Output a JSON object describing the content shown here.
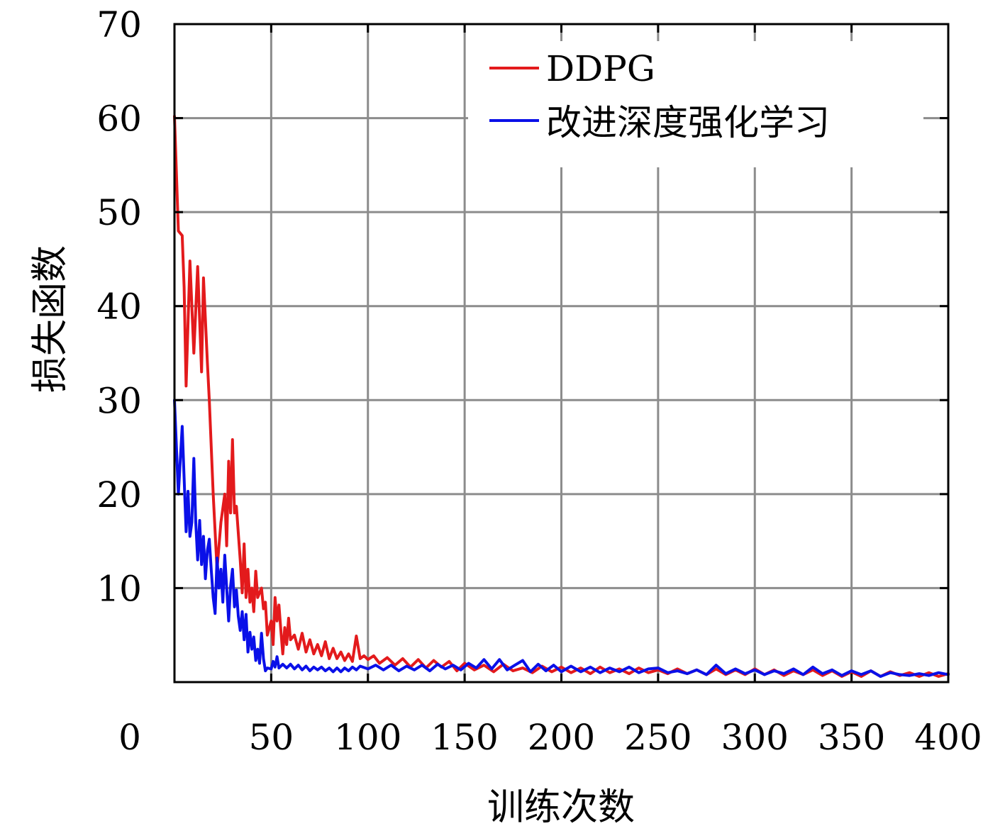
{
  "chart_data": {
    "type": "line",
    "xlabel": "训练次数",
    "ylabel": "损失函数",
    "xlim": [
      0,
      400
    ],
    "ylim": [
      0,
      70
    ],
    "x_ticks": [
      0,
      50,
      100,
      150,
      200,
      250,
      300,
      350,
      400
    ],
    "y_ticks": [
      10,
      20,
      30,
      40,
      50,
      60,
      70
    ],
    "grid": true,
    "legend_position": "top-right",
    "series": [
      {
        "name": "DDPG",
        "color": "#e31a1c",
        "points": [
          [
            0,
            60.2
          ],
          [
            2,
            48
          ],
          [
            4,
            47.5
          ],
          [
            5,
            42
          ],
          [
            6,
            31.5
          ],
          [
            8,
            44.8
          ],
          [
            10,
            35
          ],
          [
            12,
            44.2
          ],
          [
            14,
            33
          ],
          [
            15,
            43
          ],
          [
            17,
            34
          ],
          [
            18,
            30
          ],
          [
            20,
            20
          ],
          [
            22,
            12
          ],
          [
            24,
            17
          ],
          [
            26,
            20
          ],
          [
            27,
            14.5
          ],
          [
            28,
            23.5
          ],
          [
            29,
            18
          ],
          [
            30,
            25.8
          ],
          [
            31,
            18
          ],
          [
            32,
            18.7
          ],
          [
            34,
            13
          ],
          [
            35,
            9.5
          ],
          [
            36,
            14.7
          ],
          [
            37,
            9
          ],
          [
            38,
            12
          ],
          [
            39,
            8.5
          ],
          [
            40,
            10
          ],
          [
            41,
            7.5
          ],
          [
            42,
            11.8
          ],
          [
            43,
            9
          ],
          [
            45,
            10
          ],
          [
            46,
            7.8
          ],
          [
            47,
            8.5
          ],
          [
            48,
            5
          ],
          [
            50,
            6.5
          ],
          [
            51,
            4
          ],
          [
            52,
            9
          ],
          [
            53,
            6.5
          ],
          [
            54,
            8.2
          ],
          [
            55,
            5.5
          ],
          [
            56,
            3
          ],
          [
            57,
            5.8
          ],
          [
            58,
            4
          ],
          [
            59,
            6.8
          ],
          [
            60,
            4.5
          ],
          [
            62,
            5
          ],
          [
            64,
            3.5
          ],
          [
            66,
            5.2
          ],
          [
            68,
            3.2
          ],
          [
            70,
            4.5
          ],
          [
            72,
            3
          ],
          [
            74,
            4
          ],
          [
            76,
            2.8
          ],
          [
            78,
            4.3
          ],
          [
            80,
            2.5
          ],
          [
            82,
            3.6
          ],
          [
            84,
            2.5
          ],
          [
            86,
            3.2
          ],
          [
            88,
            2.3
          ],
          [
            90,
            3
          ],
          [
            92,
            2.2
          ],
          [
            94,
            4.9
          ],
          [
            96,
            2.5
          ],
          [
            98,
            2.8
          ],
          [
            100,
            2.4
          ],
          [
            103,
            2.8
          ],
          [
            106,
            2
          ],
          [
            110,
            2.6
          ],
          [
            114,
            1.8
          ],
          [
            118,
            2.5
          ],
          [
            122,
            1.6
          ],
          [
            126,
            2.4
          ],
          [
            130,
            1.5
          ],
          [
            134,
            2.3
          ],
          [
            138,
            1.6
          ],
          [
            142,
            2.2
          ],
          [
            146,
            1.2
          ],
          [
            150,
            2
          ],
          [
            155,
            1.3
          ],
          [
            160,
            1.8
          ],
          [
            165,
            1.1
          ],
          [
            170,
            1.9
          ],
          [
            175,
            1.2
          ],
          [
            180,
            1.5
          ],
          [
            185,
            1
          ],
          [
            190,
            1.7
          ],
          [
            195,
            1.1
          ],
          [
            200,
            1.6
          ],
          [
            205,
            1
          ],
          [
            210,
            1.5
          ],
          [
            215,
            0.9
          ],
          [
            220,
            1.6
          ],
          [
            225,
            1
          ],
          [
            230,
            1.4
          ],
          [
            235,
            0.9
          ],
          [
            240,
            1.5
          ],
          [
            245,
            1
          ],
          [
            250,
            1.3
          ],
          [
            255,
            0.9
          ],
          [
            260,
            1.4
          ],
          [
            265,
            0.9
          ],
          [
            270,
            1.3
          ],
          [
            275,
            0.8
          ],
          [
            280,
            1.4
          ],
          [
            285,
            0.8
          ],
          [
            290,
            1.3
          ],
          [
            295,
            0.8
          ],
          [
            300,
            1.4
          ],
          [
            305,
            0.8
          ],
          [
            310,
            1.3
          ],
          [
            315,
            0.7
          ],
          [
            320,
            1.2
          ],
          [
            325,
            0.8
          ],
          [
            330,
            1.3
          ],
          [
            335,
            0.7
          ],
          [
            340,
            1.2
          ],
          [
            345,
            0.6
          ],
          [
            350,
            1.1
          ],
          [
            355,
            0.6
          ],
          [
            360,
            1.2
          ],
          [
            365,
            0.6
          ],
          [
            370,
            1.1
          ],
          [
            375,
            0.7
          ],
          [
            380,
            1
          ],
          [
            385,
            0.6
          ],
          [
            390,
            1
          ],
          [
            395,
            0.6
          ],
          [
            400,
            0.9
          ]
        ]
      },
      {
        "name": "改进深度强化学习",
        "color": "#0a10e8",
        "points": [
          [
            0,
            30
          ],
          [
            2,
            20
          ],
          [
            4,
            27.2
          ],
          [
            6,
            16
          ],
          [
            7,
            20.3
          ],
          [
            8,
            15.5
          ],
          [
            9,
            17
          ],
          [
            10,
            23.8
          ],
          [
            11,
            17
          ],
          [
            12,
            13
          ],
          [
            13,
            17.2
          ],
          [
            14,
            12.5
          ],
          [
            15,
            15.5
          ],
          [
            16,
            11
          ],
          [
            17,
            14
          ],
          [
            18,
            15.2
          ],
          [
            19,
            12
          ],
          [
            20,
            9
          ],
          [
            21,
            7.3
          ],
          [
            22,
            13.2
          ],
          [
            23,
            10
          ],
          [
            24,
            12
          ],
          [
            25,
            8.5
          ],
          [
            26,
            13.5
          ],
          [
            27,
            10
          ],
          [
            28,
            6.5
          ],
          [
            29,
            10.2
          ],
          [
            30,
            12
          ],
          [
            31,
            8
          ],
          [
            32,
            9.8
          ],
          [
            33,
            7
          ],
          [
            34,
            5.5
          ],
          [
            35,
            7.5
          ],
          [
            36,
            4.5
          ],
          [
            37,
            7.2
          ],
          [
            38,
            3.2
          ],
          [
            39,
            5.3
          ],
          [
            40,
            3.5
          ],
          [
            41,
            4.8
          ],
          [
            42,
            2.3
          ],
          [
            43,
            3.5
          ],
          [
            44,
            2
          ],
          [
            45,
            5.2
          ],
          [
            46,
            2.5
          ],
          [
            47,
            1.2
          ],
          [
            48,
            1.5
          ],
          [
            50,
            1.4
          ],
          [
            51,
            2.2
          ],
          [
            52,
            1.6
          ],
          [
            53,
            2.7
          ],
          [
            54,
            1.5
          ],
          [
            56,
            1.9
          ],
          [
            58,
            1.5
          ],
          [
            60,
            1.9
          ],
          [
            62,
            1.4
          ],
          [
            64,
            1.8
          ],
          [
            66,
            1.3
          ],
          [
            68,
            1.7
          ],
          [
            70,
            1.2
          ],
          [
            72,
            1.6
          ],
          [
            74,
            1.3
          ],
          [
            76,
            1.6
          ],
          [
            78,
            1.2
          ],
          [
            80,
            1.5
          ],
          [
            82,
            1.1
          ],
          [
            84,
            1.5
          ],
          [
            86,
            1.1
          ],
          [
            88,
            1.5
          ],
          [
            90,
            1.2
          ],
          [
            92,
            1.6
          ],
          [
            94,
            1.3
          ],
          [
            96,
            1.7
          ],
          [
            100,
            1.4
          ],
          [
            104,
            1.8
          ],
          [
            108,
            1.3
          ],
          [
            112,
            1.8
          ],
          [
            116,
            1.2
          ],
          [
            120,
            1.7
          ],
          [
            124,
            1.3
          ],
          [
            128,
            1.8
          ],
          [
            132,
            1.2
          ],
          [
            136,
            1.9
          ],
          [
            140,
            1.4
          ],
          [
            144,
            1.8
          ],
          [
            148,
            1.3
          ],
          [
            152,
            2
          ],
          [
            156,
            1.5
          ],
          [
            160,
            2.4
          ],
          [
            164,
            1.4
          ],
          [
            168,
            2.4
          ],
          [
            172,
            1.3
          ],
          [
            176,
            1.8
          ],
          [
            180,
            2.3
          ],
          [
            184,
            1.1
          ],
          [
            188,
            1.9
          ],
          [
            192,
            1.2
          ],
          [
            196,
            1.8
          ],
          [
            200,
            1.1
          ],
          [
            205,
            1.7
          ],
          [
            210,
            1.1
          ],
          [
            215,
            1.6
          ],
          [
            220,
            1
          ],
          [
            225,
            1.5
          ],
          [
            230,
            1.1
          ],
          [
            235,
            1.6
          ],
          [
            240,
            1
          ],
          [
            245,
            1.4
          ],
          [
            250,
            1.5
          ],
          [
            255,
            1
          ],
          [
            260,
            1.2
          ],
          [
            265,
            0.9
          ],
          [
            270,
            1.3
          ],
          [
            275,
            0.8
          ],
          [
            280,
            1.8
          ],
          [
            285,
            0.9
          ],
          [
            290,
            1.4
          ],
          [
            295,
            0.9
          ],
          [
            300,
            1.3
          ],
          [
            305,
            0.8
          ],
          [
            310,
            1.2
          ],
          [
            315,
            0.9
          ],
          [
            320,
            1.4
          ],
          [
            325,
            0.8
          ],
          [
            330,
            1.6
          ],
          [
            335,
            0.9
          ],
          [
            340,
            1.3
          ],
          [
            345,
            0.7
          ],
          [
            350,
            1.2
          ],
          [
            355,
            0.8
          ],
          [
            360,
            1.2
          ],
          [
            365,
            0.6
          ],
          [
            370,
            1
          ],
          [
            375,
            0.8
          ],
          [
            380,
            0.7
          ],
          [
            385,
            0.9
          ],
          [
            390,
            0.7
          ],
          [
            395,
            1
          ],
          [
            400,
            0.8
          ]
        ]
      }
    ]
  }
}
